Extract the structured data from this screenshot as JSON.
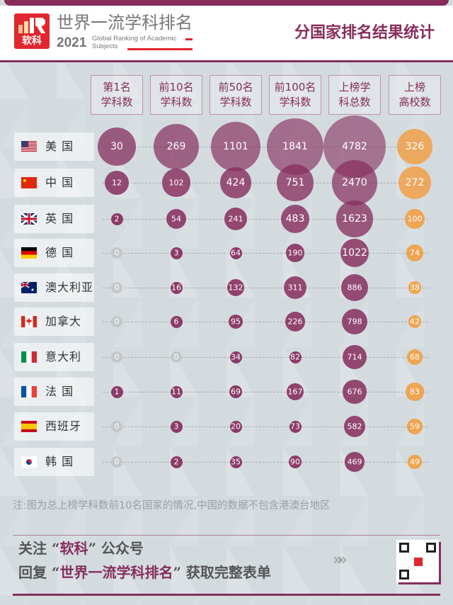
{
  "header": {
    "logo_text": "软科",
    "brand_cn": "世界一流学科排名",
    "year": "2021",
    "brand_en": "Global Ranking of Academic Subjects",
    "title": "分国家排名结果统计"
  },
  "colors": {
    "purple": "#862d5c",
    "orange": "#f0a048",
    "zero": "#c3c7ca"
  },
  "chart_data": {
    "type": "bubble-table",
    "columns": [
      {
        "line1": "第1名",
        "line2": "学科数"
      },
      {
        "line1": "前10名",
        "line2": "学科数"
      },
      {
        "line1": "前50名",
        "line2": "学科数"
      },
      {
        "line1": "前100名",
        "line2": "学科数"
      },
      {
        "line1": "上榜学",
        "line2": "科总数"
      },
      {
        "line1": "上榜",
        "line2": "高校数"
      }
    ],
    "rows": [
      {
        "country": "美 国",
        "flag": "us",
        "values": [
          30,
          269,
          1101,
          1841,
          4782,
          326
        ]
      },
      {
        "country": "中 国",
        "flag": "cn",
        "values": [
          12,
          102,
          424,
          751,
          2470,
          272
        ]
      },
      {
        "country": "英 国",
        "flag": "gb",
        "values": [
          2,
          54,
          241,
          483,
          1623,
          100
        ]
      },
      {
        "country": "德 国",
        "flag": "de",
        "values": [
          0,
          3,
          64,
          190,
          1022,
          74
        ]
      },
      {
        "country": "澳大利亚",
        "flag": "au",
        "values": [
          0,
          16,
          132,
          311,
          886,
          38
        ]
      },
      {
        "country": "加拿大",
        "flag": "ca",
        "values": [
          0,
          6,
          95,
          226,
          798,
          42
        ]
      },
      {
        "country": "意大利",
        "flag": "it",
        "values": [
          0,
          0,
          34,
          82,
          714,
          68
        ]
      },
      {
        "country": "法 国",
        "flag": "fr",
        "values": [
          1,
          11,
          69,
          167,
          676,
          83
        ]
      },
      {
        "country": "西班牙",
        "flag": "es",
        "values": [
          0,
          3,
          20,
          73,
          582,
          59
        ]
      },
      {
        "country": "韩 国",
        "flag": "kr",
        "values": [
          0,
          2,
          35,
          90,
          469,
          49
        ]
      }
    ]
  },
  "note": "注:图为总上榜学科数前10名国家的情况,中国的数据不包含港澳台地区",
  "footer": {
    "l1a": "关注 “",
    "l1b": "软科",
    "l1c": "” 公众号",
    "l2a": "回复 “",
    "l2b": "世界一流学科排名",
    "l2c": "” 获取完整表单",
    "chevrons": "»»"
  }
}
